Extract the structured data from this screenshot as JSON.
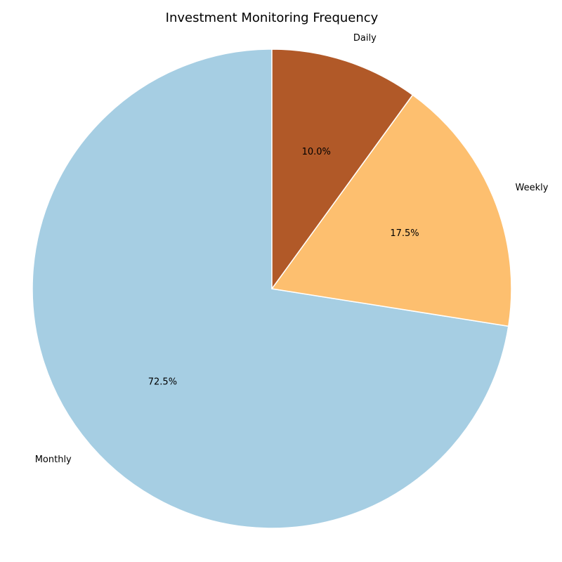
{
  "chart_data": {
    "type": "pie",
    "title": "Investment Monitoring Frequency",
    "start_angle_deg": 90,
    "direction": "counterclockwise",
    "slices": [
      {
        "label": "Monthly",
        "value": 72.5,
        "pct_label": "72.5%",
        "color": "#a6cee3"
      },
      {
        "label": "Weekly",
        "value": 17.5,
        "pct_label": "17.5%",
        "color": "#fdbf6f"
      },
      {
        "label": "Daily",
        "value": 10.0,
        "pct_label": "10.0%",
        "color": "#b15928"
      }
    ],
    "edge_color": "#ffffff"
  }
}
